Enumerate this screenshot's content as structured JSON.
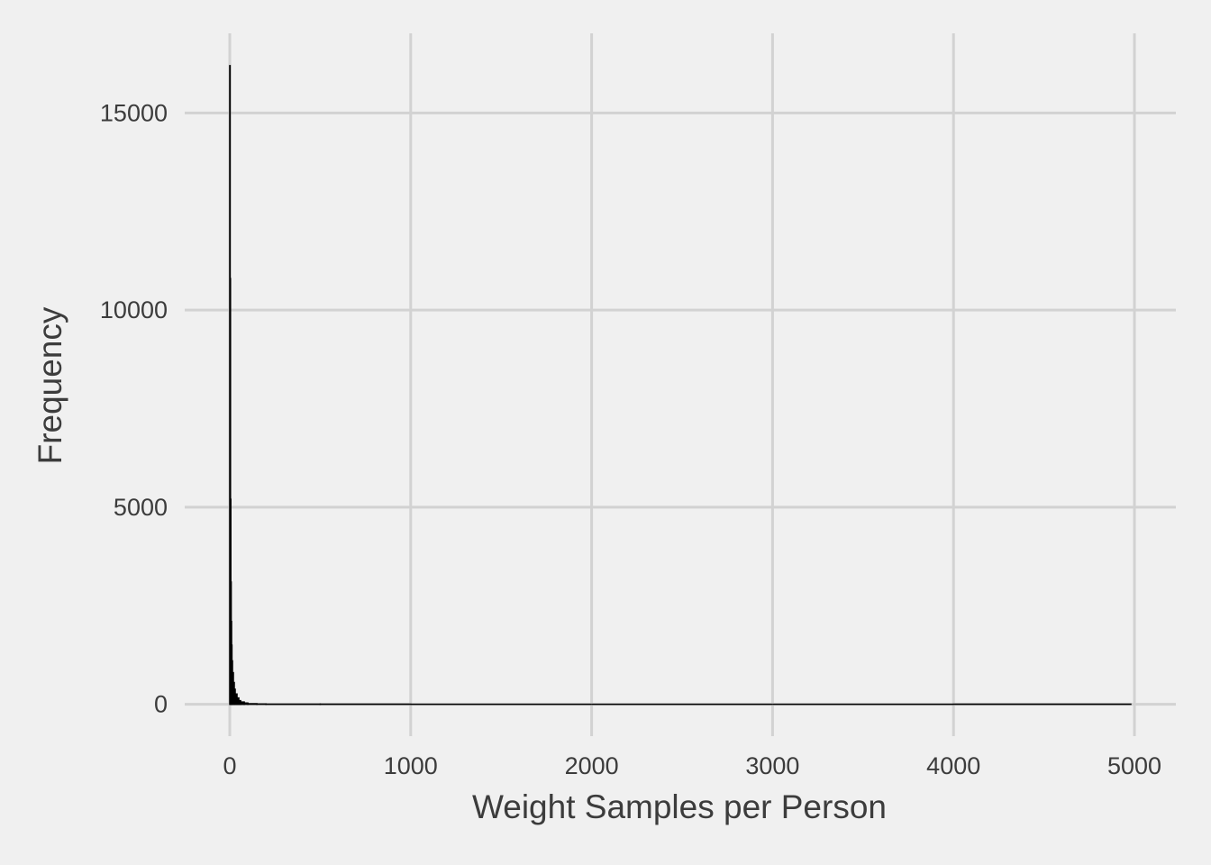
{
  "chart_data": {
    "type": "histogram",
    "x_label": "Weight Samples per Person",
    "y_label": "Frequency",
    "bins": [
      0,
      2,
      4,
      6,
      8,
      10,
      12,
      15,
      20,
      25,
      30,
      40,
      50,
      60,
      80,
      100,
      150,
      200,
      500,
      1000,
      2000,
      3000,
      4000,
      4980
    ],
    "values": [
      16200,
      10800,
      5200,
      3100,
      2100,
      1500,
      1100,
      800,
      550,
      380,
      260,
      160,
      90,
      55,
      30,
      12,
      5,
      2,
      1,
      0,
      0,
      0,
      1
    ],
    "color": "#000000",
    "xlim": [
      -249,
      5229
    ],
    "ylim": [
      -810,
      17020
    ],
    "xticks": [
      0,
      1000,
      2000,
      3000,
      4000,
      5000
    ],
    "yticks": [
      0,
      5000,
      10000,
      15000
    ],
    "grid": true
  }
}
